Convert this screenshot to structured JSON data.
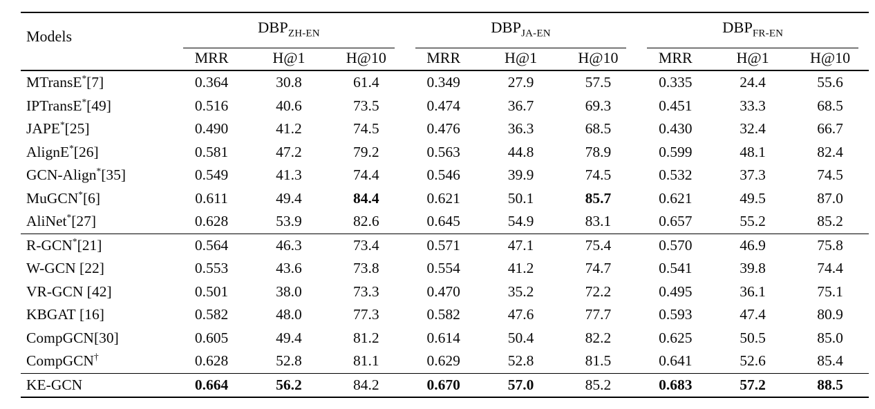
{
  "colors": {
    "text": "#0a0a0a",
    "background": "#ffffff",
    "rule": "#000000"
  },
  "table": {
    "models_header": "Models",
    "groups": [
      {
        "label": "DBP",
        "subscript": "ZH-EN",
        "metrics": [
          "MRR",
          "H@1",
          "H@10"
        ]
      },
      {
        "label": "DBP",
        "subscript": "JA-EN",
        "metrics": [
          "MRR",
          "H@1",
          "H@10"
        ]
      },
      {
        "label": "DBP",
        "subscript": "FR-EN",
        "metrics": [
          "MRR",
          "H@1",
          "H@10"
        ]
      }
    ],
    "sections": [
      {
        "name": "alignment-baselines",
        "rows": [
          {
            "base": "MTransE",
            "sup": "*",
            "ref": "[7]",
            "values": [
              "0.364",
              "30.8",
              "61.4",
              "0.349",
              "27.9",
              "57.5",
              "0.335",
              "24.4",
              "55.6"
            ],
            "bold": []
          },
          {
            "base": "IPTransE",
            "sup": "*",
            "ref": "[49]",
            "values": [
              "0.516",
              "40.6",
              "73.5",
              "0.474",
              "36.7",
              "69.3",
              "0.451",
              "33.3",
              "68.5"
            ],
            "bold": []
          },
          {
            "base": "JAPE",
            "sup": "*",
            "ref": "[25]",
            "values": [
              "0.490",
              "41.2",
              "74.5",
              "0.476",
              "36.3",
              "68.5",
              "0.430",
              "32.4",
              "66.7"
            ],
            "bold": []
          },
          {
            "base": "AlignE",
            "sup": "*",
            "ref": "[26]",
            "values": [
              "0.581",
              "47.2",
              "79.2",
              "0.563",
              "44.8",
              "78.9",
              "0.599",
              "48.1",
              "82.4"
            ],
            "bold": []
          },
          {
            "base": "GCN-Align",
            "sup": "*",
            "ref": "[35]",
            "values": [
              "0.549",
              "41.3",
              "74.4",
              "0.546",
              "39.9",
              "74.5",
              "0.532",
              "37.3",
              "74.5"
            ],
            "bold": []
          },
          {
            "base": "MuGCN",
            "sup": "*",
            "ref": "[6]",
            "values": [
              "0.611",
              "49.4",
              "84.4",
              "0.621",
              "50.1",
              "85.7",
              "0.621",
              "49.5",
              "87.0"
            ],
            "bold": [
              2,
              5
            ]
          },
          {
            "base": "AliNet",
            "sup": "*",
            "ref": "[27]",
            "values": [
              "0.628",
              "53.9",
              "82.6",
              "0.645",
              "54.9",
              "83.1",
              "0.657",
              "55.2",
              "85.2"
            ],
            "bold": []
          }
        ]
      },
      {
        "name": "gcn-variants",
        "rows": [
          {
            "base": "R-GCN",
            "sup": "*",
            "ref": "[21]",
            "values": [
              "0.564",
              "46.3",
              "73.4",
              "0.571",
              "47.1",
              "75.4",
              "0.570",
              "46.9",
              "75.8"
            ],
            "bold": []
          },
          {
            "base": "W-GCN",
            "sup": "",
            "ref": " [22]",
            "values": [
              "0.553",
              "43.6",
              "73.8",
              "0.554",
              "41.2",
              "74.7",
              "0.541",
              "39.8",
              "74.4"
            ],
            "bold": []
          },
          {
            "base": "VR-GCN",
            "sup": "",
            "ref": " [42]",
            "values": [
              "0.501",
              "38.0",
              "73.3",
              "0.470",
              "35.2",
              "72.2",
              "0.495",
              "36.1",
              "75.1"
            ],
            "bold": []
          },
          {
            "base": "KBGAT",
            "sup": "",
            "ref": " [16]",
            "values": [
              "0.582",
              "48.0",
              "77.3",
              "0.582",
              "47.6",
              "77.7",
              "0.593",
              "47.4",
              "80.9"
            ],
            "bold": []
          },
          {
            "base": "CompGCN",
            "sup": "",
            "ref": "[30]",
            "values": [
              "0.605",
              "49.4",
              "81.2",
              "0.614",
              "50.4",
              "82.2",
              "0.625",
              "50.5",
              "85.0"
            ],
            "bold": []
          },
          {
            "base": "CompGCN",
            "sup": "†",
            "ref": "",
            "values": [
              "0.628",
              "52.8",
              "81.1",
              "0.629",
              "52.8",
              "81.5",
              "0.641",
              "52.6",
              "85.4"
            ],
            "bold": []
          }
        ]
      },
      {
        "name": "proposed-model",
        "rows": [
          {
            "base": "KE-GCN",
            "sup": "",
            "ref": "",
            "values": [
              "0.664",
              "56.2",
              "84.2",
              "0.670",
              "57.0",
              "85.2",
              "0.683",
              "57.2",
              "88.5"
            ],
            "bold": [
              0,
              1,
              3,
              4,
              6,
              7,
              8
            ]
          }
        ]
      }
    ]
  }
}
